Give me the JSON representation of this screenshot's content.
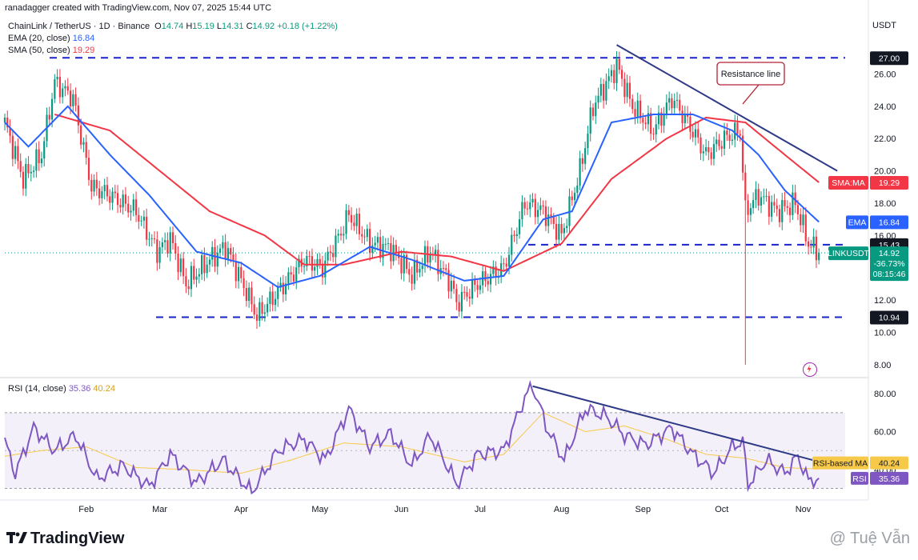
{
  "header": {
    "creator_line": "ranadagger created with TradingView.com, Nov 07, 2025 15:44 UTC",
    "symbol": "ChainLink / TetherUS · 1D · Binance",
    "ohlc": {
      "o_label": "O",
      "o": "14.74",
      "h_label": "H",
      "h": "15.19",
      "l_label": "L",
      "l": "14.31",
      "c_label": "C",
      "c": "14.92",
      "change": "+0.18 (+1.22%)"
    },
    "ema_label": "EMA (20, close)",
    "ema_value": "16.84",
    "sma_label": "SMA (50, close)",
    "sma_value": "19.29",
    "currency": "USDT"
  },
  "colors": {
    "up": "#089981",
    "down": "#f23645",
    "ema": "#2962ff",
    "sma": "#f23645",
    "rsi": "#7e57c2",
    "rsi_ma": "#f7c948",
    "level_line": "#1a23c8",
    "trendline": "#2e3a87",
    "annotation_border": "#b22234"
  },
  "annotation": {
    "text": "Resistance line"
  },
  "badges": {
    "sma": {
      "label": "SMA:MA",
      "value": "19.29"
    },
    "ema": {
      "label": "EMA",
      "value": "16.84"
    },
    "price": {
      "symbol": "LINKUSDT",
      "value": "14.92",
      "change": "-36.73%",
      "timer": "08:15:46"
    },
    "level_high": "27.00",
    "level_mid": "15.43",
    "level_low": "10.94",
    "rsi_ma": {
      "label": "RSI-based MA",
      "value": "40.24"
    },
    "rsi": {
      "label": "RSI",
      "value": "35.36"
    }
  },
  "rsi_legend": {
    "label": "RSI (14, close)",
    "rsi": "35.36",
    "ma": "40.24"
  },
  "footer": {
    "brand": "TradingView",
    "watermark": "@ Tuệ Vẫn"
  },
  "chart_data": [
    {
      "type": "candlestick",
      "title": "ChainLink / TetherUS · 1D · Binance",
      "ylabel": "USDT",
      "x_ticks": [
        "Feb",
        "Mar",
        "Apr",
        "May",
        "Jun",
        "Jul",
        "Aug",
        "Sep",
        "Oct",
        "Nov"
      ],
      "y_ticks": [
        8,
        10,
        12,
        14,
        16,
        18,
        20,
        22,
        24,
        26
      ],
      "ylim": [
        7.5,
        28.5
      ],
      "horizontal_levels": [
        27.0,
        15.43,
        10.94
      ],
      "close_anchors": [
        {
          "date": "2025-01-01",
          "value": 23.0
        },
        {
          "date": "2025-01-08",
          "value": 19.5
        },
        {
          "date": "2025-01-15",
          "value": 21.0
        },
        {
          "date": "2025-01-20",
          "value": 25.5
        },
        {
          "date": "2025-01-27",
          "value": 24.5
        },
        {
          "date": "2025-02-03",
          "value": 19.0
        },
        {
          "date": "2025-02-10",
          "value": 18.5
        },
        {
          "date": "2025-02-20",
          "value": 17.5
        },
        {
          "date": "2025-02-28",
          "value": 15.0
        },
        {
          "date": "2025-03-05",
          "value": 15.8
        },
        {
          "date": "2025-03-11",
          "value": 13.0
        },
        {
          "date": "2025-03-20",
          "value": 14.5
        },
        {
          "date": "2025-03-26",
          "value": 15.3
        },
        {
          "date": "2025-04-03",
          "value": 12.5
        },
        {
          "date": "2025-04-07",
          "value": 11.0
        },
        {
          "date": "2025-04-15",
          "value": 12.5
        },
        {
          "date": "2025-04-25",
          "value": 14.5
        },
        {
          "date": "2025-05-02",
          "value": 14.0
        },
        {
          "date": "2025-05-09",
          "value": 16.2
        },
        {
          "date": "2025-05-12",
          "value": 17.3
        },
        {
          "date": "2025-05-20",
          "value": 15.5
        },
        {
          "date": "2025-05-28",
          "value": 15.2
        },
        {
          "date": "2025-06-05",
          "value": 13.5
        },
        {
          "date": "2025-06-12",
          "value": 15.0
        },
        {
          "date": "2025-06-20",
          "value": 13.0
        },
        {
          "date": "2025-06-22",
          "value": 11.8
        },
        {
          "date": "2025-06-30",
          "value": 13.0
        },
        {
          "date": "2025-07-10",
          "value": 14.0
        },
        {
          "date": "2025-07-18",
          "value": 18.0
        },
        {
          "date": "2025-07-25",
          "value": 17.5
        },
        {
          "date": "2025-08-01",
          "value": 16.0
        },
        {
          "date": "2025-08-08",
          "value": 20.0
        },
        {
          "date": "2025-08-13",
          "value": 24.0
        },
        {
          "date": "2025-08-22",
          "value": 26.5
        },
        {
          "date": "2025-08-28",
          "value": 24.0
        },
        {
          "date": "2025-09-05",
          "value": 22.5
        },
        {
          "date": "2025-09-12",
          "value": 24.5
        },
        {
          "date": "2025-09-18",
          "value": 23.0
        },
        {
          "date": "2025-09-25",
          "value": 21.0
        },
        {
          "date": "2025-10-02",
          "value": 22.0
        },
        {
          "date": "2025-10-08",
          "value": 22.5
        },
        {
          "date": "2025-10-10",
          "value": 17.5
        },
        {
          "date": "2025-10-15",
          "value": 18.5
        },
        {
          "date": "2025-10-22",
          "value": 17.5
        },
        {
          "date": "2025-10-29",
          "value": 18.0
        },
        {
          "date": "2025-11-03",
          "value": 15.5
        },
        {
          "date": "2025-11-07",
          "value": 14.92
        }
      ],
      "ema20_anchors": [
        {
          "date": "2025-01-01",
          "value": 23.0
        },
        {
          "date": "2025-01-10",
          "value": 21.5
        },
        {
          "date": "2025-01-25",
          "value": 24.0
        },
        {
          "date": "2025-02-10",
          "value": 21.0
        },
        {
          "date": "2025-02-25",
          "value": 18.5
        },
        {
          "date": "2025-03-15",
          "value": 15.0
        },
        {
          "date": "2025-04-01",
          "value": 14.3
        },
        {
          "date": "2025-04-15",
          "value": 12.8
        },
        {
          "date": "2025-05-01",
          "value": 13.5
        },
        {
          "date": "2025-05-20",
          "value": 15.3
        },
        {
          "date": "2025-06-05",
          "value": 14.5
        },
        {
          "date": "2025-06-25",
          "value": 13.2
        },
        {
          "date": "2025-07-10",
          "value": 13.5
        },
        {
          "date": "2025-07-25",
          "value": 17.0
        },
        {
          "date": "2025-08-05",
          "value": 17.5
        },
        {
          "date": "2025-08-20",
          "value": 23.0
        },
        {
          "date": "2025-09-05",
          "value": 23.5
        },
        {
          "date": "2025-09-20",
          "value": 23.5
        },
        {
          "date": "2025-10-05",
          "value": 22.5
        },
        {
          "date": "2025-10-15",
          "value": 21.0
        },
        {
          "date": "2025-10-25",
          "value": 18.8
        },
        {
          "date": "2025-11-07",
          "value": 16.84
        }
      ],
      "sma50_anchors": [
        {
          "date": "2025-01-20",
          "value": 23.5
        },
        {
          "date": "2025-02-10",
          "value": 22.5
        },
        {
          "date": "2025-03-01",
          "value": 20.0
        },
        {
          "date": "2025-03-20",
          "value": 17.5
        },
        {
          "date": "2025-04-10",
          "value": 16.0
        },
        {
          "date": "2025-04-25",
          "value": 14.2
        },
        {
          "date": "2025-05-10",
          "value": 14.2
        },
        {
          "date": "2025-06-01",
          "value": 15.0
        },
        {
          "date": "2025-06-20",
          "value": 14.7
        },
        {
          "date": "2025-07-10",
          "value": 13.8
        },
        {
          "date": "2025-08-01",
          "value": 15.5
        },
        {
          "date": "2025-08-20",
          "value": 19.5
        },
        {
          "date": "2025-09-10",
          "value": 22.0
        },
        {
          "date": "2025-09-25",
          "value": 23.3
        },
        {
          "date": "2025-10-10",
          "value": 23.0
        },
        {
          "date": "2025-10-25",
          "value": 21.0
        },
        {
          "date": "2025-11-07",
          "value": 19.29
        }
      ],
      "trendline": [
        {
          "date": "2025-08-22",
          "value": 27.8
        },
        {
          "date": "2025-11-14",
          "value": 20.0
        }
      ],
      "spike_low": {
        "date": "2025-10-10",
        "value": 8.0
      }
    },
    {
      "type": "line",
      "title": "RSI (14, close)",
      "y_ticks": [
        40,
        60,
        80
      ],
      "ylim": [
        26,
        86
      ],
      "band": [
        30,
        70
      ],
      "series": [
        {
          "name": "RSI",
          "anchors": [
            {
              "date": "2025-01-01",
              "value": 55
            },
            {
              "date": "2025-01-05",
              "value": 38
            },
            {
              "date": "2025-01-12",
              "value": 62
            },
            {
              "date": "2025-01-20",
              "value": 50
            },
            {
              "date": "2025-01-28",
              "value": 58
            },
            {
              "date": "2025-02-05",
              "value": 35
            },
            {
              "date": "2025-02-15",
              "value": 42
            },
            {
              "date": "2025-02-25",
              "value": 31
            },
            {
              "date": "2025-03-05",
              "value": 48
            },
            {
              "date": "2025-03-15",
              "value": 33
            },
            {
              "date": "2025-03-25",
              "value": 45
            },
            {
              "date": "2025-04-05",
              "value": 28
            },
            {
              "date": "2025-04-15",
              "value": 50
            },
            {
              "date": "2025-04-25",
              "value": 56
            },
            {
              "date": "2025-05-03",
              "value": 45
            },
            {
              "date": "2025-05-12",
              "value": 72
            },
            {
              "date": "2025-05-20",
              "value": 52
            },
            {
              "date": "2025-05-28",
              "value": 59
            },
            {
              "date": "2025-06-05",
              "value": 42
            },
            {
              "date": "2025-06-12",
              "value": 58
            },
            {
              "date": "2025-06-20",
              "value": 38
            },
            {
              "date": "2025-06-22",
              "value": 32
            },
            {
              "date": "2025-06-30",
              "value": 48
            },
            {
              "date": "2025-07-10",
              "value": 50
            },
            {
              "date": "2025-07-18",
              "value": 78
            },
            {
              "date": "2025-07-21",
              "value": 84
            },
            {
              "date": "2025-07-27",
              "value": 60
            },
            {
              "date": "2025-08-02",
              "value": 45
            },
            {
              "date": "2025-08-10",
              "value": 72
            },
            {
              "date": "2025-08-18",
              "value": 68
            },
            {
              "date": "2025-08-25",
              "value": 58
            },
            {
              "date": "2025-09-02",
              "value": 53
            },
            {
              "date": "2025-09-12",
              "value": 62
            },
            {
              "date": "2025-09-20",
              "value": 48
            },
            {
              "date": "2025-09-28",
              "value": 38
            },
            {
              "date": "2025-10-05",
              "value": 52
            },
            {
              "date": "2025-10-09",
              "value": 55
            },
            {
              "date": "2025-10-11",
              "value": 32
            },
            {
              "date": "2025-10-18",
              "value": 45
            },
            {
              "date": "2025-10-25",
              "value": 38
            },
            {
              "date": "2025-10-30",
              "value": 47
            },
            {
              "date": "2025-11-03",
              "value": 34
            },
            {
              "date": "2025-11-07",
              "value": 35.36
            }
          ]
        },
        {
          "name": "RSI-based MA",
          "anchors": [
            {
              "date": "2025-01-01",
              "value": 47
            },
            {
              "date": "2025-01-15",
              "value": 50
            },
            {
              "date": "2025-02-01",
              "value": 52
            },
            {
              "date": "2025-02-20",
              "value": 41
            },
            {
              "date": "2025-03-10",
              "value": 40
            },
            {
              "date": "2025-04-01",
              "value": 38
            },
            {
              "date": "2025-04-20",
              "value": 45
            },
            {
              "date": "2025-05-10",
              "value": 54
            },
            {
              "date": "2025-06-01",
              "value": 52
            },
            {
              "date": "2025-06-25",
              "value": 44
            },
            {
              "date": "2025-07-10",
              "value": 48
            },
            {
              "date": "2025-07-25",
              "value": 70
            },
            {
              "date": "2025-08-10",
              "value": 60
            },
            {
              "date": "2025-08-25",
              "value": 63
            },
            {
              "date": "2025-09-10",
              "value": 56
            },
            {
              "date": "2025-09-25",
              "value": 48
            },
            {
              "date": "2025-10-10",
              "value": 46
            },
            {
              "date": "2025-10-25",
              "value": 41
            },
            {
              "date": "2025-11-07",
              "value": 40.24
            }
          ]
        }
      ],
      "trendline": [
        {
          "date": "2025-07-21",
          "value": 84
        },
        {
          "date": "2025-11-07",
          "value": 43
        }
      ]
    }
  ]
}
